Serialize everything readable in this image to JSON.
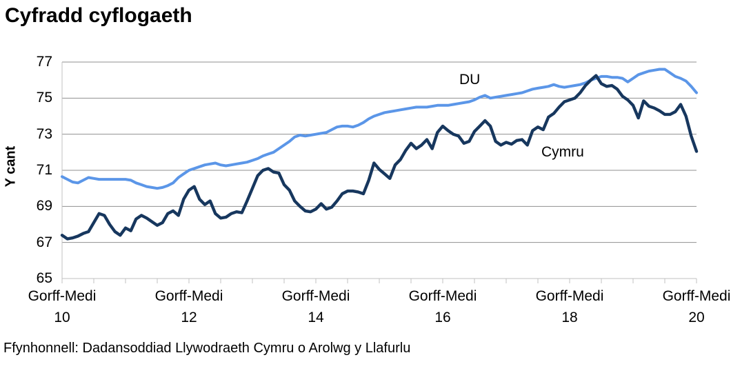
{
  "title": "Cyfradd cyflogaeth",
  "y_axis": {
    "title": "Y cant",
    "tick_labels": [
      "77",
      "75",
      "73",
      "71",
      "69",
      "67",
      "65"
    ],
    "min": 65,
    "max": 77,
    "tick_step": 2
  },
  "x_axis": {
    "period_label": "Gorff-Medi",
    "year_labels": [
      "10",
      "12",
      "14",
      "16",
      "18",
      "20"
    ],
    "minor_tick_interval_months": 6
  },
  "series_labels": {
    "du": "DU",
    "cymru": "Cymru"
  },
  "source": "Ffynhonnell: Dadansoddiad Llywodraeth Cymru o Arolwg y Llafurlu",
  "colors": {
    "du_line": "#5b96e8",
    "cymru_line": "#17375e",
    "gridline": "#8f8f8f",
    "axis_border": "#c0c0c0",
    "text": "#000000"
  },
  "chart_data": {
    "type": "line",
    "title": "Cyfradd cyflogaeth",
    "ylabel": "Y cant",
    "ylim": [
      65,
      77
    ],
    "ytick_step": 2,
    "grid": true,
    "legend_position": "inline-labels",
    "x_description": "Rolling 3-month periods at monthly intervals, Gorff-Medi 2010 (index 0) to Gorff-Medi 2020 (index 120)",
    "x_start": "Gorff-Medi 2010",
    "x_end": "Gorff-Medi 2020",
    "x_tick_years": [
      "10",
      "12",
      "14",
      "16",
      "18",
      "20"
    ],
    "values_note": "Per cent, estimated from chart pixels",
    "series": [
      {
        "name": "DU",
        "values": [
          70.65,
          70.5,
          70.35,
          70.3,
          70.45,
          70.6,
          70.55,
          70.5,
          70.5,
          70.5,
          70.5,
          70.5,
          70.5,
          70.45,
          70.3,
          70.2,
          70.1,
          70.05,
          70.0,
          70.05,
          70.15,
          70.3,
          70.6,
          70.8,
          71.0,
          71.1,
          71.2,
          71.3,
          71.35,
          71.4,
          71.3,
          71.25,
          71.3,
          71.35,
          71.4,
          71.45,
          71.55,
          71.65,
          71.8,
          71.9,
          72.0,
          72.2,
          72.4,
          72.6,
          72.85,
          72.95,
          72.9,
          72.95,
          73.0,
          73.05,
          73.1,
          73.25,
          73.4,
          73.45,
          73.45,
          73.4,
          73.5,
          73.65,
          73.85,
          74.0,
          74.1,
          74.2,
          74.25,
          74.3,
          74.35,
          74.4,
          74.45,
          74.5,
          74.5,
          74.5,
          74.55,
          74.6,
          74.6,
          74.6,
          74.65,
          74.7,
          74.75,
          74.8,
          74.9,
          75.05,
          75.15,
          75.0,
          75.05,
          75.1,
          75.15,
          75.2,
          75.25,
          75.3,
          75.4,
          75.5,
          75.55,
          75.6,
          75.65,
          75.75,
          75.65,
          75.6,
          75.65,
          75.7,
          75.75,
          75.85,
          76.0,
          76.1,
          76.2,
          76.2,
          76.15,
          76.15,
          76.1,
          75.9,
          76.1,
          76.3,
          76.4,
          76.5,
          76.55,
          76.6,
          76.6,
          76.4,
          76.2,
          76.1,
          75.95,
          75.65,
          75.3
        ]
      },
      {
        "name": "Cymru",
        "values": [
          67.4,
          67.2,
          67.25,
          67.35,
          67.5,
          67.6,
          68.1,
          68.6,
          68.5,
          68.0,
          67.6,
          67.4,
          67.8,
          67.65,
          68.3,
          68.5,
          68.35,
          68.15,
          67.95,
          68.1,
          68.6,
          68.75,
          68.5,
          69.4,
          69.9,
          70.1,
          69.4,
          69.1,
          69.3,
          68.6,
          68.35,
          68.4,
          68.6,
          68.7,
          68.65,
          69.3,
          70.0,
          70.7,
          71.0,
          71.1,
          70.9,
          70.85,
          70.2,
          69.9,
          69.3,
          69.0,
          68.75,
          68.7,
          68.85,
          69.15,
          68.85,
          68.95,
          69.3,
          69.7,
          69.85,
          69.85,
          69.8,
          69.7,
          70.45,
          71.4,
          71.05,
          70.8,
          70.55,
          71.3,
          71.6,
          72.1,
          72.5,
          72.2,
          72.4,
          72.7,
          72.2,
          73.1,
          73.45,
          73.2,
          73.0,
          72.9,
          72.5,
          72.6,
          73.15,
          73.45,
          73.75,
          73.45,
          72.6,
          72.4,
          72.55,
          72.45,
          72.65,
          72.7,
          72.4,
          73.2,
          73.4,
          73.25,
          73.95,
          74.15,
          74.5,
          74.8,
          74.9,
          75.0,
          75.3,
          75.7,
          76.0,
          76.25,
          75.8,
          75.65,
          75.7,
          75.5,
          75.1,
          74.9,
          74.6,
          73.9,
          74.85,
          74.55,
          74.45,
          74.3,
          74.1,
          74.1,
          74.25,
          74.65,
          74.0,
          72.9,
          72.05
        ]
      }
    ]
  }
}
